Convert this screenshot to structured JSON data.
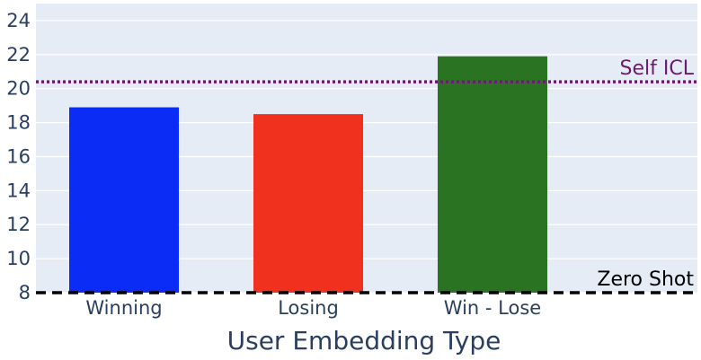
{
  "chart_data": {
    "type": "bar",
    "title": "",
    "xlabel": "User Embedding Type",
    "ylabel": "",
    "categories": [
      "Winning",
      "Losing",
      "Win - Lose"
    ],
    "values": [
      18.9,
      18.5,
      21.9
    ],
    "colors": [
      "#0a2cf5",
      "#f0311e",
      "#297322"
    ],
    "ylim": [
      8,
      25
    ],
    "yticks": [
      8,
      10,
      12,
      14,
      16,
      18,
      20,
      22,
      24
    ],
    "grid": true,
    "legend": "none",
    "plot_background": "#e5ecf6",
    "reference_lines": [
      {
        "label": "Self ICL",
        "value": 20.4,
        "style": "dotted",
        "color": "#6a1b6e"
      },
      {
        "label": "Zero Shot",
        "value": 8.0,
        "style": "dashed",
        "color": "#000000"
      }
    ]
  }
}
